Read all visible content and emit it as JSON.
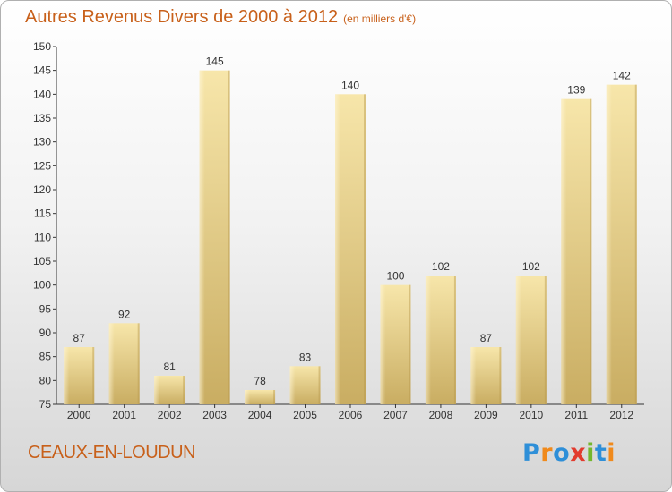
{
  "header": {
    "title": "Autres Revenus Divers de 2000 à 2012",
    "unit": "(en milliers d'€)"
  },
  "footer": {
    "commune": "CEAUX-EN-LOUDUN",
    "logo": "Proxiti",
    "logo_colors": [
      "#2e8fd8",
      "#f08a1c",
      "#e23b2e",
      "#74b72e"
    ]
  },
  "colors": {
    "title": "#c8601a",
    "bar_light": "#f6e2a3",
    "bar_dark": "#c9ad62",
    "axis": "#333333"
  },
  "chart_data": {
    "type": "bar",
    "title": "Autres Revenus Divers de 2000 à 2012",
    "subtitle": "(en milliers d'€)",
    "categories": [
      "2000",
      "2001",
      "2002",
      "2003",
      "2004",
      "2005",
      "2006",
      "2007",
      "2008",
      "2009",
      "2010",
      "2011",
      "2012"
    ],
    "values": [
      87,
      92,
      81,
      145,
      78,
      83,
      140,
      100,
      102,
      87,
      102,
      139,
      142
    ],
    "ylim": [
      75,
      150
    ],
    "yticks": [
      75,
      80,
      85,
      90,
      95,
      100,
      105,
      110,
      115,
      120,
      125,
      130,
      135,
      140,
      145,
      150
    ],
    "grid": false,
    "data_labels": true
  }
}
